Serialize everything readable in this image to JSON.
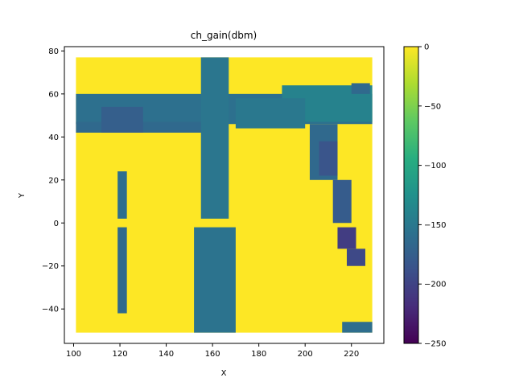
{
  "chart_data": {
    "type": "heatmap",
    "plot_style": "hexbin",
    "title": "ch_gain(dbm)",
    "xlabel": "X",
    "ylabel": "Y",
    "xlim": [
      96,
      234
    ],
    "ylim": [
      -56,
      82
    ],
    "xticks": [
      100,
      120,
      140,
      160,
      180,
      200,
      220
    ],
    "yticks": [
      -40,
      -20,
      0,
      20,
      40,
      60,
      80
    ],
    "colorbar": {
      "colormap": "viridis",
      "range": [
        -250,
        0
      ],
      "ticks": [
        0,
        -50,
        -100,
        -150,
        -200,
        -250
      ]
    },
    "background_value": 0,
    "data_extent": {
      "x": [
        101,
        229
      ],
      "y": [
        -51,
        77
      ]
    },
    "grid": false,
    "regions": [
      {
        "shape": "rect",
        "x": [
          101,
          229
        ],
        "y": [
          -51,
          77
        ],
        "value": 0
      },
      {
        "shape": "rect",
        "x": [
          101,
          229
        ],
        "y": [
          46,
          60
        ],
        "value": -158
      },
      {
        "shape": "rect",
        "x": [
          101,
          160
        ],
        "y": [
          42,
          47
        ],
        "value": -165
      },
      {
        "shape": "rect",
        "x": [
          112,
          130
        ],
        "y": [
          42,
          54
        ],
        "value": -175
      },
      {
        "shape": "rect",
        "x": [
          190,
          229
        ],
        "y": [
          47,
          64
        ],
        "value": -140
      },
      {
        "shape": "rect",
        "x": [
          170,
          200
        ],
        "y": [
          44,
          58
        ],
        "value": -150
      },
      {
        "shape": "rect",
        "x": [
          155,
          167
        ],
        "y": [
          2,
          77
        ],
        "value": -152
      },
      {
        "shape": "rect",
        "x": [
          152,
          170
        ],
        "y": [
          -51,
          -2
        ],
        "value": -155
      },
      {
        "shape": "rect",
        "x": [
          119,
          123
        ],
        "y": [
          2,
          24
        ],
        "value": -160
      },
      {
        "shape": "rect",
        "x": [
          119,
          123
        ],
        "y": [
          -42,
          -2
        ],
        "value": -165
      },
      {
        "shape": "rect",
        "x": [
          202,
          214
        ],
        "y": [
          20,
          46
        ],
        "value": -165
      },
      {
        "shape": "rect",
        "x": [
          206,
          214
        ],
        "y": [
          22,
          38
        ],
        "value": -185
      },
      {
        "shape": "rect",
        "x": [
          212,
          220
        ],
        "y": [
          0,
          20
        ],
        "value": -178
      },
      {
        "shape": "rect",
        "x": [
          214,
          222
        ],
        "y": [
          -12,
          -2
        ],
        "value": -205
      },
      {
        "shape": "rect",
        "x": [
          218,
          226
        ],
        "y": [
          -20,
          -12
        ],
        "value": -195
      },
      {
        "shape": "rect",
        "x": [
          216,
          229
        ],
        "y": [
          -51,
          -46
        ],
        "value": -160
      },
      {
        "shape": "rect",
        "x": [
          220,
          228
        ],
        "y": [
          60,
          65
        ],
        "value": -165
      }
    ]
  }
}
